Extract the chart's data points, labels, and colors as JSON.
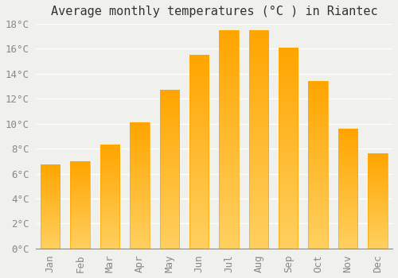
{
  "title": "Average monthly temperatures (°C ) in Riantec",
  "months": [
    "Jan",
    "Feb",
    "Mar",
    "Apr",
    "May",
    "Jun",
    "Jul",
    "Aug",
    "Sep",
    "Oct",
    "Nov",
    "Dec"
  ],
  "values": [
    6.7,
    7.0,
    8.3,
    10.1,
    12.7,
    15.5,
    17.5,
    17.5,
    16.1,
    13.4,
    9.6,
    7.6
  ],
  "bar_color_top": "#FFAA00",
  "bar_color_bottom": "#FFD966",
  "background_color": "#F0F0EC",
  "grid_color": "#FFFFFF",
  "title_fontsize": 11,
  "tick_fontsize": 9,
  "ylim": [
    0,
    18
  ],
  "yticks": [
    0,
    2,
    4,
    6,
    8,
    10,
    12,
    14,
    16,
    18
  ]
}
